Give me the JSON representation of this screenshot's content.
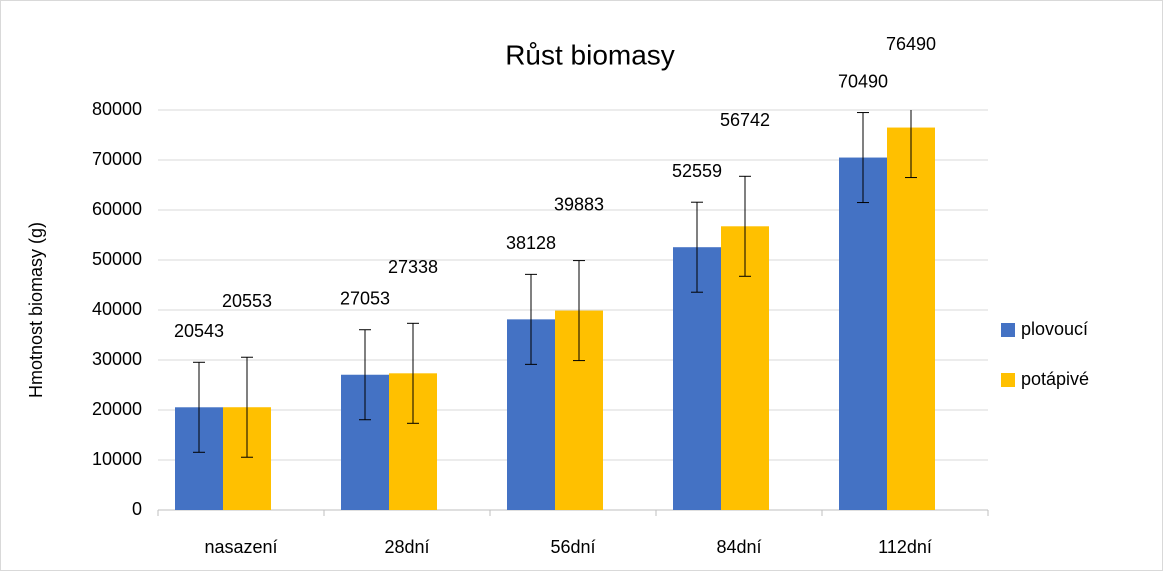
{
  "chart_data": {
    "type": "bar",
    "title": "Růst biomasy",
    "ylabel": "Hmotnost biomasy (g)",
    "categories": [
      "nasazení",
      "28dní",
      "56dní",
      "84dní",
      "112dní"
    ],
    "series": [
      {
        "name": "plovoucí",
        "color": "#4472c4",
        "values": [
          20543,
          27053,
          38128,
          52559,
          70490
        ],
        "errors": [
          9000,
          9000,
          9000,
          9000,
          9000
        ]
      },
      {
        "name": "potápivé",
        "color": "#ffc000",
        "values": [
          20553,
          27338,
          39883,
          56742,
          76490
        ],
        "errors": [
          10000,
          10000,
          10000,
          10000,
          10000
        ]
      }
    ],
    "ylim": [
      0,
      80000
    ],
    "yticks": [
      0,
      10000,
      20000,
      30000,
      40000,
      50000,
      60000,
      70000,
      80000
    ],
    "grid": true,
    "legend": "right"
  }
}
